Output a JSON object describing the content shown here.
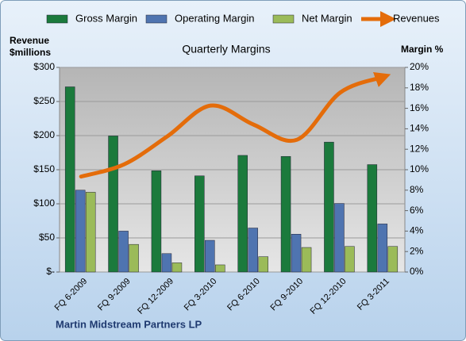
{
  "chart_data": {
    "type": "combo",
    "title": "Quarterly Margins",
    "y_label": "Revenue $millions",
    "y2_label": "Margin %",
    "footer": "Martin Midstream Partners LP",
    "categories": [
      "FQ 6-2009",
      "FQ 9-2009",
      "FQ 12-2009",
      "FQ 3-2010",
      "FQ 6-2010",
      "FQ 9-2010",
      "FQ 12-2010",
      "FQ 3-2011"
    ],
    "series": [
      {
        "name": "Gross Margin",
        "type": "bar",
        "axis": "y2",
        "color": "#1b7a3c",
        "values": [
          18.1,
          13.3,
          9.9,
          9.4,
          11.4,
          11.3,
          12.7,
          10.5
        ]
      },
      {
        "name": "Operating Margin",
        "type": "bar",
        "axis": "y2",
        "color": "#4f74b0",
        "values": [
          8.0,
          4.0,
          1.8,
          3.1,
          4.3,
          3.7,
          6.7,
          4.7
        ]
      },
      {
        "name": "Net Margin",
        "type": "bar",
        "axis": "y2",
        "color": "#9bbb59",
        "values": [
          7.8,
          2.7,
          0.9,
          0.7,
          1.5,
          2.4,
          2.5,
          2.5
        ]
      },
      {
        "name": "Revenues",
        "type": "line",
        "axis": "y",
        "color": "#e46c0a",
        "values": [
          140,
          158,
          199,
          244,
          216,
          194,
          263,
          286
        ]
      }
    ],
    "ylim": [
      0,
      300
    ],
    "yticks": [
      {
        "value": 0,
        "label": "$-"
      },
      {
        "value": 50,
        "label": "$50"
      },
      {
        "value": 100,
        "label": "$100"
      },
      {
        "value": 150,
        "label": "$150"
      },
      {
        "value": 200,
        "label": "$200"
      },
      {
        "value": 250,
        "label": "$250"
      },
      {
        "value": 300,
        "label": "$300"
      }
    ],
    "y2lim": [
      0,
      20
    ],
    "y2ticks": [
      {
        "value": 0,
        "label": "0%"
      },
      {
        "value": 2,
        "label": "2%"
      },
      {
        "value": 4,
        "label": "4%"
      },
      {
        "value": 6,
        "label": "6%"
      },
      {
        "value": 8,
        "label": "8%"
      },
      {
        "value": 10,
        "label": "10%"
      },
      {
        "value": 12,
        "label": "12%"
      },
      {
        "value": 14,
        "label": "14%"
      },
      {
        "value": 16,
        "label": "16%"
      },
      {
        "value": 18,
        "label": "18%"
      },
      {
        "value": 20,
        "label": "20%"
      }
    ],
    "grid": true
  }
}
